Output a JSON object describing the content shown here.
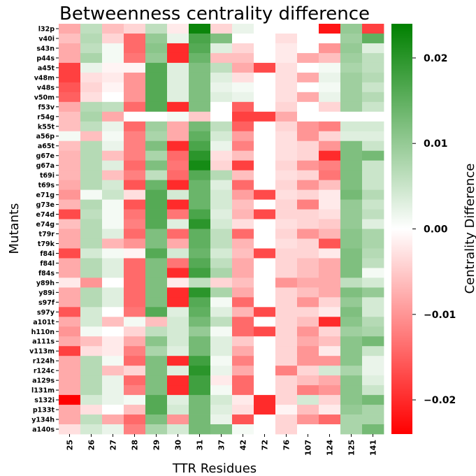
{
  "chart_data": {
    "type": "heatmap",
    "title": "Betweenness centrality difference",
    "xlabel": "TTR Residues",
    "ylabel": "Mutants",
    "colorbar_label": "Centrality Difference",
    "colorbar_ticks": [
      -0.02,
      -0.01,
      0.0,
      0.01,
      0.02
    ],
    "colorbar_tick_labels": [
      "−0.02",
      "−0.01",
      "0.00",
      "0.01",
      "0.02"
    ],
    "vmin": -0.024,
    "vmax": 0.024,
    "colormap": [
      "#ff0000",
      "#ffffff",
      "#008000"
    ],
    "x_categories": [
      "25",
      "26",
      "27",
      "28",
      "29",
      "30",
      "31",
      "37",
      "42",
      "72",
      "76",
      "107",
      "124",
      "125",
      "141"
    ],
    "y_categories": [
      "l32p",
      "v40i",
      "s43n",
      "p44s",
      "a45t",
      "v48m",
      "v48s",
      "v50m",
      "f53v",
      "r54g",
      "k55t",
      "a56p",
      "a65t",
      "g67e",
      "g67a",
      "t69i",
      "t69s",
      "e71g",
      "g73e",
      "e74d",
      "e74g",
      "t79r",
      "t79k",
      "f84i",
      "f84l",
      "f84s",
      "y89h",
      "y89i",
      "s97f",
      "s97y",
      "a101t",
      "h110n",
      "a111s",
      "v113m",
      "r124h",
      "r124c",
      "a129s",
      "l131m",
      "s132i",
      "p133t",
      "y134h",
      "a140s"
    ],
    "values": [
      [
        -0.008,
        0.006,
        -0.006,
        -0.004,
        0.006,
        -0.002,
        0.023,
        -0.004,
        0.002,
        0.0,
        0.0,
        0.0,
        -0.022,
        0.01,
        -0.018
      ],
      [
        -0.006,
        0.007,
        -0.004,
        -0.014,
        0.01,
        0.002,
        0.017,
        0.012,
        0.0,
        0.0,
        -0.003,
        0.0,
        0.0,
        0.009,
        0.015
      ],
      [
        -0.008,
        0.006,
        0.001,
        -0.014,
        0.011,
        -0.02,
        0.016,
        0.003,
        -0.004,
        0.0,
        -0.002,
        0.0,
        -0.01,
        0.01,
        0.003
      ],
      [
        -0.008,
        0.008,
        0.001,
        -0.013,
        0.01,
        -0.02,
        0.014,
        -0.006,
        -0.006,
        0.0,
        -0.002,
        -0.008,
        -0.006,
        0.009,
        0.006
      ],
      [
        -0.018,
        0.002,
        -0.001,
        -0.001,
        0.016,
        0.003,
        0.012,
        0.006,
        -0.008,
        -0.017,
        -0.003,
        0.0,
        0.001,
        0.008,
        0.006
      ],
      [
        -0.018,
        -0.003,
        -0.002,
        -0.01,
        0.016,
        0.003,
        0.012,
        0.003,
        -0.003,
        0.0,
        -0.003,
        -0.008,
        0.002,
        0.009,
        0.007
      ],
      [
        -0.016,
        -0.004,
        -0.001,
        -0.01,
        0.016,
        0.003,
        0.012,
        0.002,
        0.001,
        0.0,
        -0.003,
        0.0,
        0.001,
        0.009,
        0.005
      ],
      [
        -0.015,
        -0.003,
        0.0,
        -0.01,
        0.016,
        0.003,
        0.012,
        0.003,
        0.002,
        0.0,
        -0.003,
        -0.008,
        0.002,
        0.009,
        0.007
      ],
      [
        -0.008,
        0.007,
        0.006,
        -0.014,
        0.016,
        -0.02,
        0.012,
        0.0,
        -0.015,
        0.0,
        -0.004,
        0.0,
        -0.004,
        0.009,
        0.005
      ],
      [
        -0.006,
        0.008,
        -0.008,
        0.0,
        0.0,
        0.001,
        -0.005,
        0.0,
        -0.018,
        -0.018,
        -0.008,
        0.0,
        0.0,
        0.0,
        0.0
      ],
      [
        -0.006,
        0.006,
        0.002,
        -0.014,
        0.009,
        -0.008,
        0.013,
        0.006,
        -0.015,
        0.0,
        -0.004,
        -0.01,
        -0.012,
        0.004,
        0.004
      ],
      [
        0.001,
        -0.006,
        0.001,
        -0.012,
        0.008,
        -0.008,
        0.015,
        0.004,
        -0.009,
        0.0,
        -0.003,
        -0.01,
        -0.004,
        0.003,
        0.003
      ],
      [
        -0.006,
        0.007,
        0.002,
        -0.012,
        0.012,
        -0.02,
        0.017,
        0.002,
        -0.012,
        0.0,
        -0.003,
        -0.004,
        -0.01,
        0.012,
        0.005
      ],
      [
        -0.007,
        0.007,
        -0.006,
        -0.012,
        0.008,
        -0.014,
        0.02,
        -0.003,
        -0.006,
        0.0,
        -0.003,
        -0.004,
        -0.02,
        0.012,
        0.013
      ],
      [
        -0.007,
        0.007,
        0.003,
        -0.014,
        0.012,
        -0.013,
        0.022,
        -0.004,
        -0.018,
        0.0,
        -0.004,
        -0.01,
        -0.012,
        0.012,
        0.005
      ],
      [
        -0.007,
        0.007,
        -0.006,
        -0.012,
        0.006,
        -0.014,
        0.016,
        0.007,
        -0.006,
        0.0,
        -0.003,
        -0.004,
        -0.013,
        0.012,
        0.005
      ],
      [
        -0.008,
        0.007,
        0.004,
        -0.016,
        0.014,
        -0.02,
        0.014,
        0.003,
        -0.014,
        0.0,
        -0.004,
        -0.01,
        -0.006,
        0.012,
        0.005
      ],
      [
        -0.01,
        0.001,
        0.005,
        -0.003,
        0.016,
        0.004,
        0.014,
        0.004,
        -0.009,
        -0.017,
        -0.003,
        -0.004,
        -0.002,
        0.013,
        0.007
      ],
      [
        -0.007,
        0.007,
        0.001,
        -0.016,
        0.016,
        -0.02,
        0.014,
        0.004,
        -0.006,
        0.0,
        -0.004,
        -0.012,
        -0.002,
        0.01,
        0.005
      ],
      [
        -0.017,
        0.006,
        0.001,
        -0.013,
        0.016,
        -0.013,
        0.017,
        0.003,
        -0.007,
        -0.017,
        -0.004,
        -0.004,
        -0.003,
        0.01,
        0.006
      ],
      [
        -0.006,
        0.007,
        0.001,
        -0.012,
        0.016,
        0.003,
        0.02,
        0.004,
        -0.003,
        0.0,
        -0.003,
        -0.004,
        -0.005,
        0.01,
        0.003
      ],
      [
        -0.008,
        0.007,
        0.003,
        -0.014,
        0.012,
        -0.014,
        0.015,
        0.006,
        -0.014,
        0.0,
        -0.004,
        -0.01,
        -0.007,
        0.011,
        0.008
      ],
      [
        -0.008,
        0.007,
        -0.007,
        -0.01,
        0.012,
        -0.008,
        0.015,
        0.006,
        -0.007,
        0.0,
        -0.003,
        -0.004,
        -0.016,
        0.011,
        0.008
      ],
      [
        -0.017,
        0.004,
        0.001,
        -0.001,
        0.016,
        0.004,
        0.014,
        0.004,
        -0.006,
        -0.017,
        -0.004,
        -0.004,
        -0.002,
        0.012,
        0.007
      ],
      [
        -0.008,
        0.007,
        0.003,
        -0.014,
        0.012,
        -0.013,
        0.016,
        0.006,
        -0.008,
        0.0,
        -0.004,
        -0.006,
        -0.008,
        0.012,
        0.006
      ],
      [
        -0.008,
        0.007,
        0.003,
        -0.014,
        0.012,
        -0.02,
        0.018,
        0.008,
        -0.008,
        0.0,
        -0.004,
        -0.006,
        -0.008,
        0.012,
        0.001
      ],
      [
        -0.002,
        -0.01,
        0.0,
        -0.014,
        0.012,
        -0.002,
        0.006,
        -0.004,
        -0.006,
        0.0,
        -0.01,
        -0.008,
        -0.008,
        0.006,
        0.004
      ],
      [
        -0.008,
        0.007,
        0.003,
        -0.014,
        0.012,
        -0.02,
        0.02,
        0.008,
        -0.008,
        0.0,
        -0.004,
        -0.006,
        -0.008,
        0.012,
        0.01
      ],
      [
        -0.008,
        0.007,
        0.003,
        -0.014,
        0.012,
        -0.02,
        0.016,
        0.001,
        -0.014,
        0.0,
        -0.004,
        -0.01,
        -0.004,
        0.01,
        0.004
      ],
      [
        -0.016,
        0.004,
        0.0,
        -0.013,
        0.016,
        0.003,
        0.015,
        0.003,
        -0.007,
        -0.017,
        -0.004,
        -0.004,
        -0.002,
        0.012,
        0.004
      ],
      [
        -0.008,
        0.004,
        -0.006,
        0.001,
        -0.006,
        0.004,
        0.013,
        0.006,
        -0.014,
        0.0,
        -0.004,
        -0.006,
        -0.02,
        0.011,
        0.007
      ],
      [
        -0.01,
        0.001,
        0.0,
        -0.004,
        0.006,
        0.004,
        0.01,
        0.001,
        -0.014,
        -0.017,
        -0.004,
        -0.01,
        -0.004,
        0.009,
        0.008
      ],
      [
        -0.008,
        -0.006,
        -0.002,
        -0.008,
        0.011,
        0.004,
        0.013,
        0.003,
        -0.005,
        0.0,
        -0.004,
        -0.008,
        -0.006,
        0.011,
        0.013
      ],
      [
        -0.018,
        -0.003,
        -0.002,
        -0.012,
        0.008,
        0.003,
        0.013,
        0.003,
        -0.008,
        0.0,
        -0.004,
        -0.01,
        -0.002,
        0.011,
        0.005
      ],
      [
        -0.008,
        0.007,
        0.001,
        -0.014,
        0.012,
        -0.02,
        0.018,
        0.001,
        -0.012,
        0.0,
        -0.004,
        -0.01,
        -0.01,
        0.011,
        0.002
      ],
      [
        -0.008,
        0.007,
        -0.006,
        -0.004,
        0.012,
        0.003,
        0.02,
        0.002,
        -0.008,
        0.0,
        -0.012,
        -0.004,
        0.004,
        0.008,
        0.002
      ],
      [
        -0.008,
        0.007,
        0.002,
        -0.014,
        0.012,
        -0.02,
        0.018,
        -0.002,
        -0.014,
        0.0,
        -0.004,
        -0.006,
        -0.008,
        0.011,
        0.003
      ],
      [
        -0.008,
        0.007,
        0.002,
        -0.012,
        0.012,
        -0.02,
        0.018,
        0.001,
        -0.014,
        0.0,
        -0.004,
        -0.012,
        -0.01,
        0.011,
        0.005
      ],
      [
        -0.024,
        0.004,
        0.002,
        0.001,
        0.016,
        0.003,
        0.013,
        0.004,
        -0.002,
        -0.02,
        -0.004,
        0.004,
        -0.004,
        0.011,
        0.013
      ],
      [
        -0.008,
        -0.003,
        0.0,
        -0.006,
        0.016,
        0.004,
        0.013,
        0.003,
        -0.003,
        -0.02,
        -0.001,
        -0.006,
        -0.002,
        0.01,
        0.008
      ],
      [
        -0.008,
        0.006,
        -0.008,
        -0.014,
        0.012,
        -0.01,
        0.013,
        0.002,
        -0.016,
        0.0,
        -0.004,
        -0.01,
        -0.014,
        0.008,
        0.008
      ],
      [
        -0.003,
        0.004,
        0.002,
        -0.012,
        0.008,
        0.004,
        0.013,
        0.012,
        0.001,
        0.0,
        -0.004,
        0.0,
        0.0,
        0.008,
        0.013
      ]
    ]
  }
}
